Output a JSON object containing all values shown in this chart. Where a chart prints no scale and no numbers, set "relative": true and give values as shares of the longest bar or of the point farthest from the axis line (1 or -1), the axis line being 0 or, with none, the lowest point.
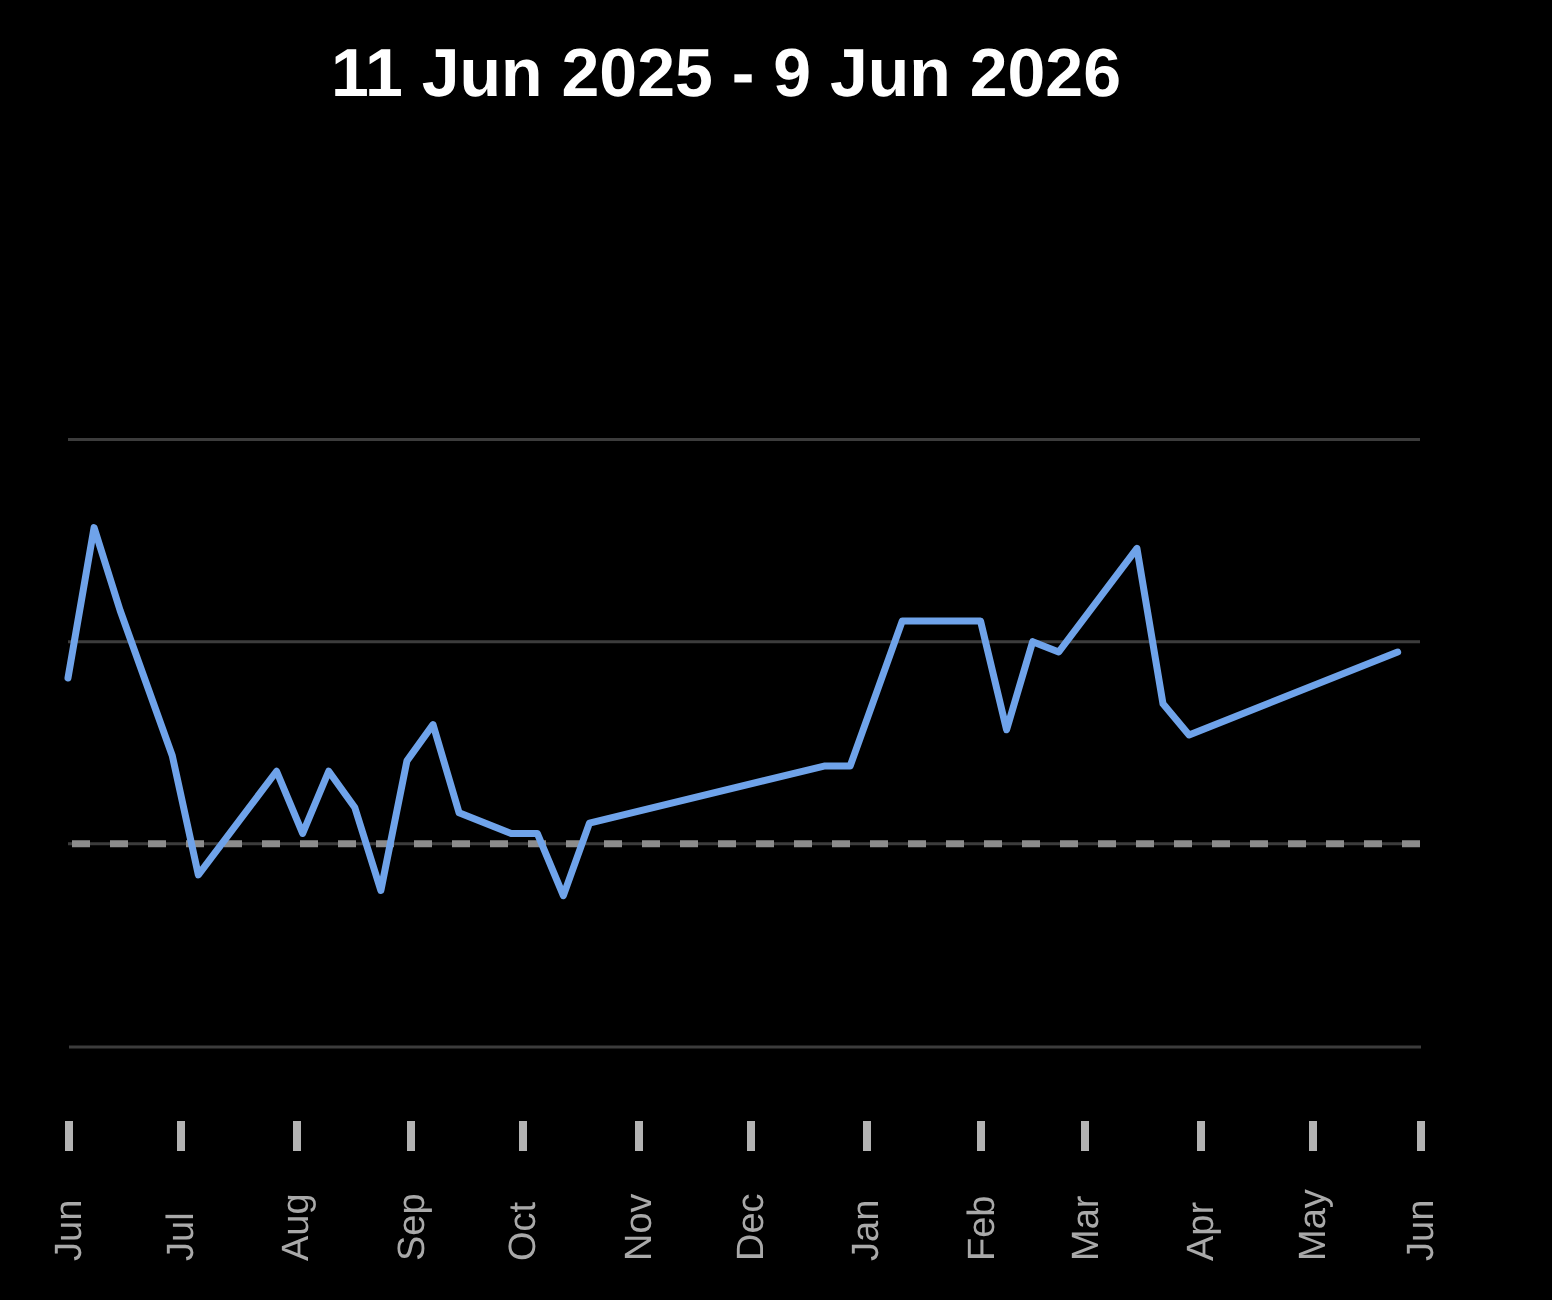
{
  "chart_data": {
    "type": "line",
    "title": "11 Jun 2025 - 9 Jun 2026",
    "relative": true,
    "x": [
      "2025-06-11",
      "2025-06-18",
      "2025-06-25",
      "2025-07-09",
      "2025-07-16",
      "2025-08-06",
      "2025-08-13",
      "2025-08-20",
      "2025-08-27",
      "2025-09-03",
      "2025-09-10",
      "2025-09-17",
      "2025-09-24",
      "2025-10-08",
      "2025-10-15",
      "2025-10-22",
      "2025-10-29",
      "2025-12-31",
      "2026-01-07",
      "2026-01-21",
      "2026-02-11",
      "2026-02-18",
      "2026-02-25",
      "2026-03-04",
      "2026-03-25",
      "2026-04-01",
      "2026-04-08",
      "2026-06-03"
    ],
    "series": [
      {
        "color": "#6fa3ea",
        "values": [
          0.71,
          1,
          0.84,
          0.56,
          0.33,
          0.53,
          0.41,
          0.53,
          0.46,
          0.3,
          0.55,
          0.62,
          0.45,
          0.41,
          0.41,
          0.29,
          0.43,
          0.54,
          0.54,
          0.82,
          0.82,
          0.61,
          0.78,
          0.76,
          0.96,
          0.66,
          0.6,
          0.76
        ]
      }
    ],
    "xlim": [
      "2025-06-11",
      "2026-06-09"
    ],
    "xticks": [
      {
        "value": "2025-06-11",
        "label": "Jun"
      },
      {
        "value": "2025-07-11",
        "label": "Jul"
      },
      {
        "value": "2025-08-11",
        "label": "Aug"
      },
      {
        "value": "2025-09-11",
        "label": "Sep"
      },
      {
        "value": "2025-10-11",
        "label": "Oct"
      },
      {
        "value": "2025-11-11",
        "label": "Nov"
      },
      {
        "value": "2025-12-11",
        "label": "Dec"
      },
      {
        "value": "2026-01-11",
        "label": "Jan"
      },
      {
        "value": "2026-02-11",
        "label": "Feb"
      },
      {
        "value": "2026-03-11",
        "label": "Mar"
      },
      {
        "value": "2026-04-11",
        "label": "Apr"
      },
      {
        "value": "2026-05-11",
        "label": "May"
      },
      {
        "value": "2026-06-09",
        "label": "Jun"
      }
    ],
    "ref_lines": [
      {
        "axis": "y",
        "value": 0.39,
        "color": "#3c3c3c"
      },
      {
        "axis": "y",
        "value": 0.78,
        "color": "#3c3c3c"
      },
      {
        "axis": "y",
        "value": 1.17,
        "color": "#3c3c3c"
      },
      {
        "axis": "y",
        "value": 0.39,
        "color": "#8c8c8c",
        "line_style": "dashed"
      }
    ]
  }
}
